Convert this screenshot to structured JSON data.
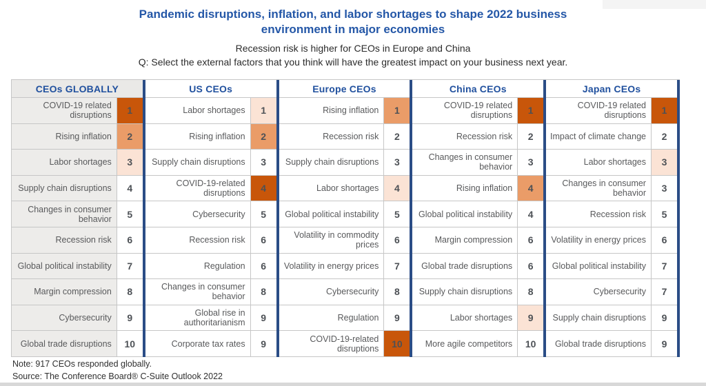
{
  "chart_data": {
    "type": "table",
    "title": "Pandemic disruptions, inflation, and labor shortages to shape 2022 business environment in major economies",
    "subtitle": "Recession risk is higher for CEOs in Europe and China",
    "question": "Q: Select the external factors that you think will have the greatest impact on your business next year.",
    "note": "Note: 917 CEOs responded globally.",
    "source": "Source: The Conference Board® C-Suite Outlook 2022",
    "highlight_legend": {
      "dark": "COVID-19 related disruptions",
      "medium": "Rising inflation",
      "light": "Labor shortages"
    },
    "columns": [
      {
        "header": "CEOs GLOBALLY",
        "rows": [
          {
            "factor": "COVID-19 related disruptions",
            "rank": "1",
            "highlight": "dark"
          },
          {
            "factor": "Rising inflation",
            "rank": "2",
            "highlight": "medium"
          },
          {
            "factor": "Labor shortages",
            "rank": "3",
            "highlight": "light"
          },
          {
            "factor": "Supply chain disruptions",
            "rank": "4",
            "highlight": null
          },
          {
            "factor": "Changes in consumer behavior",
            "rank": "5",
            "highlight": null
          },
          {
            "factor": "Recession risk",
            "rank": "6",
            "highlight": null
          },
          {
            "factor": "Global political instability",
            "rank": "7",
            "highlight": null
          },
          {
            "factor": "Margin compression",
            "rank": "8",
            "highlight": null
          },
          {
            "factor": "Cybersecurity",
            "rank": "9",
            "highlight": null
          },
          {
            "factor": "Global trade disruptions",
            "rank": "10",
            "highlight": null
          }
        ]
      },
      {
        "header": "US CEOs",
        "rows": [
          {
            "factor": "Labor shortages",
            "rank": "1",
            "highlight": "light"
          },
          {
            "factor": "Rising inflation",
            "rank": "2",
            "highlight": "medium"
          },
          {
            "factor": "Supply chain disruptions",
            "rank": "3",
            "highlight": null
          },
          {
            "factor": "COVID-19-related disruptions",
            "rank": "4",
            "highlight": "dark"
          },
          {
            "factor": "Cybersecurity",
            "rank": "5",
            "highlight": null
          },
          {
            "factor": "Recession risk",
            "rank": "6",
            "highlight": null
          },
          {
            "factor": "Regulation",
            "rank": "6",
            "highlight": null
          },
          {
            "factor": "Changes in consumer behavior",
            "rank": "8",
            "highlight": null
          },
          {
            "factor": "Global rise in authoritarianism",
            "rank": "9",
            "highlight": null
          },
          {
            "factor": "Corporate tax rates",
            "rank": "9",
            "highlight": null
          }
        ]
      },
      {
        "header": "Europe CEOs",
        "rows": [
          {
            "factor": "Rising inflation",
            "rank": "1",
            "highlight": "medium"
          },
          {
            "factor": "Recession risk",
            "rank": "2",
            "highlight": null
          },
          {
            "factor": "Supply chain disruptions",
            "rank": "3",
            "highlight": null
          },
          {
            "factor": "Labor shortages",
            "rank": "4",
            "highlight": "light"
          },
          {
            "factor": "Global political instability",
            "rank": "5",
            "highlight": null
          },
          {
            "factor": "Volatility in commodity prices",
            "rank": "6",
            "highlight": null
          },
          {
            "factor": "Volatility in energy prices",
            "rank": "7",
            "highlight": null
          },
          {
            "factor": "Cybersecurity",
            "rank": "8",
            "highlight": null
          },
          {
            "factor": "Regulation",
            "rank": "9",
            "highlight": null
          },
          {
            "factor": "COVID-19-related disruptions",
            "rank": "10",
            "highlight": "dark"
          }
        ]
      },
      {
        "header": "China CEOs",
        "rows": [
          {
            "factor": "COVID-19 related disruptions",
            "rank": "1",
            "highlight": "dark"
          },
          {
            "factor": "Recession risk",
            "rank": "2",
            "highlight": null
          },
          {
            "factor": "Changes in consumer behavior",
            "rank": "3",
            "highlight": null
          },
          {
            "factor": "Rising inflation",
            "rank": "4",
            "highlight": "medium"
          },
          {
            "factor": "Global political instability",
            "rank": "4",
            "highlight": null
          },
          {
            "factor": "Margin compression",
            "rank": "6",
            "highlight": null
          },
          {
            "factor": "Global trade disruptions",
            "rank": "6",
            "highlight": null
          },
          {
            "factor": "Supply chain disruptions",
            "rank": "8",
            "highlight": null
          },
          {
            "factor": "Labor shortages",
            "rank": "9",
            "highlight": "light"
          },
          {
            "factor": "More agile competitors",
            "rank": "10",
            "highlight": null
          }
        ]
      },
      {
        "header": "Japan CEOs",
        "rows": [
          {
            "factor": "COVID-19 related disruptions",
            "rank": "1",
            "highlight": "dark"
          },
          {
            "factor": "Impact of climate change",
            "rank": "2",
            "highlight": null
          },
          {
            "factor": "Labor shortages",
            "rank": "3",
            "highlight": "light"
          },
          {
            "factor": "Changes in consumer behavior",
            "rank": "3",
            "highlight": null
          },
          {
            "factor": "Recession risk",
            "rank": "5",
            "highlight": null
          },
          {
            "factor": "Volatility in energy prices",
            "rank": "6",
            "highlight": null
          },
          {
            "factor": "Global political instability",
            "rank": "7",
            "highlight": null
          },
          {
            "factor": "Cybersecurity",
            "rank": "7",
            "highlight": null
          },
          {
            "factor": "Supply chain disruptions",
            "rank": "9",
            "highlight": null
          },
          {
            "factor": "Global trade disruptions",
            "rank": "9",
            "highlight": null
          }
        ]
      }
    ],
    "layout": {
      "legend_position": "none",
      "grid": "table-lines"
    },
    "colors": {
      "title_blue": "#2457A7",
      "header_blue": "#20509E",
      "divider_navy": "#2B4D86",
      "rank_dark": "#C8560A",
      "rank_medium": "#EA9C68",
      "rank_light": "#FBE3D5",
      "first_col_bg": "#EDECEA",
      "grid_line": "#C6C6C6"
    }
  }
}
